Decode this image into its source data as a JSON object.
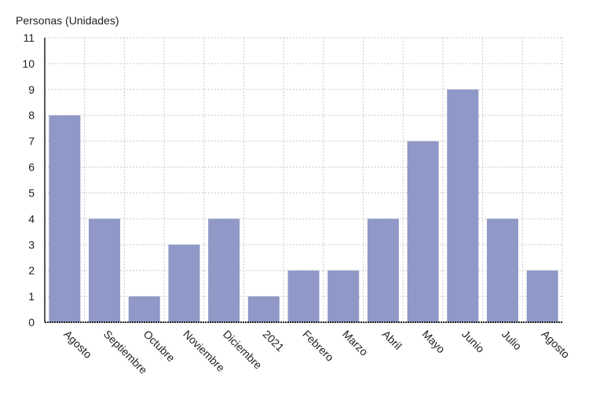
{
  "chart_data": {
    "type": "bar",
    "title": "",
    "xlabel": "",
    "ylabel": "Personas (Unidades)",
    "ylim": [
      0,
      11
    ],
    "yticks": [
      0,
      1,
      2,
      3,
      4,
      5,
      6,
      7,
      8,
      9,
      10,
      11
    ],
    "categories": [
      "Agosto",
      "Septiembre",
      "Octubre",
      "Noviembre",
      "Diciembre",
      "2021",
      "Febrero",
      "Marzo",
      "Abril",
      "Mayo",
      "Junio",
      "Julio",
      "Agosto"
    ],
    "values": [
      8,
      4,
      1,
      3,
      4,
      1,
      2,
      2,
      4,
      7,
      9,
      4,
      2
    ],
    "grid": true,
    "colors": {
      "bar": "#8f98c6",
      "grid": "#c9c9c9",
      "text": "#222222"
    }
  }
}
